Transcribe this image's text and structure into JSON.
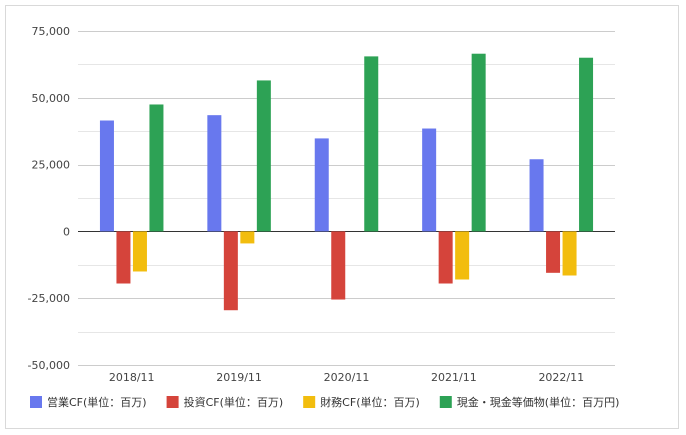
{
  "chart_data": {
    "type": "bar",
    "categories": [
      "2018/11",
      "2019/11",
      "2020/11",
      "2021/11",
      "2022/11"
    ],
    "series": [
      {
        "name": "営業CF(単位：百万)",
        "color": "#6878ee",
        "values": [
          41500,
          43500,
          34800,
          38500,
          27000
        ]
      },
      {
        "name": "投資CF(単位：百万)",
        "color": "#d5443b",
        "values": [
          -19500,
          -29500,
          -25500,
          -19500,
          -15500
        ]
      },
      {
        "name": "財務CF(単位：百万)",
        "color": "#f2bd0e",
        "values": [
          -15000,
          -4500,
          0,
          -18000,
          -16500
        ]
      },
      {
        "name": "現金・現金等価物(単位：百万円)",
        "color": "#2da255",
        "values": [
          47500,
          56500,
          65500,
          66500,
          65000
        ]
      }
    ],
    "yticks": [
      -50000,
      -25000,
      0,
      25000,
      50000,
      75000
    ],
    "ytick_labels": [
      "-50,000",
      "-25,000",
      "0",
      "25,000",
      "50,000",
      "75,000"
    ],
    "ylim": [
      -50000,
      75000
    ],
    "grid": true,
    "legend_position": "bottom"
  }
}
